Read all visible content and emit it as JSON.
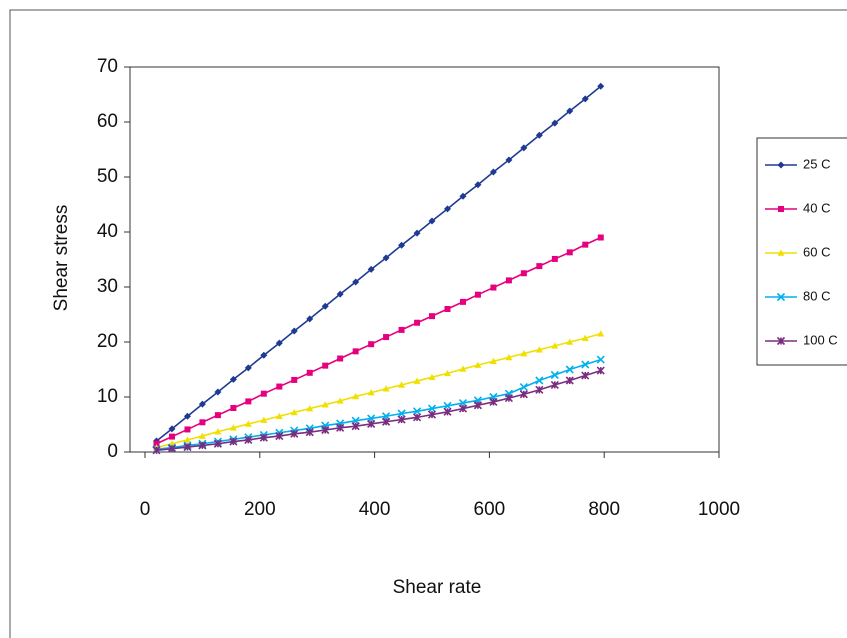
{
  "chart_data": {
    "type": "line",
    "xlabel": "Shear rate",
    "ylabel": "Shear stress",
    "x": [
      20,
      47,
      74,
      100,
      127,
      154,
      180,
      207,
      234,
      260,
      287,
      314,
      340,
      367,
      394,
      420,
      447,
      474,
      500,
      527,
      554,
      580,
      607,
      634,
      660,
      687,
      714,
      740,
      767,
      794
    ],
    "series": [
      {
        "name": "25 C",
        "color": "#1f3a93",
        "marker": "diamond",
        "values": [
          2.0,
          4.2,
          6.5,
          8.7,
          10.9,
          13.2,
          15.3,
          17.6,
          19.8,
          22.0,
          24.2,
          26.5,
          28.7,
          30.9,
          33.2,
          35.3,
          37.6,
          39.8,
          42.0,
          44.2,
          46.5,
          48.6,
          50.9,
          53.1,
          55.3,
          57.6,
          59.8,
          62.0,
          64.2,
          66.5
        ]
      },
      {
        "name": "40 C",
        "color": "#e6007e",
        "marker": "square",
        "values": [
          1.5,
          2.8,
          4.1,
          5.4,
          6.7,
          8.0,
          9.2,
          10.6,
          11.9,
          13.1,
          14.4,
          15.7,
          17.0,
          18.3,
          19.6,
          20.9,
          22.2,
          23.5,
          24.7,
          26.0,
          27.3,
          28.6,
          29.9,
          31.2,
          32.5,
          33.8,
          35.1,
          36.3,
          37.7,
          39.0
        ]
      },
      {
        "name": "60 C",
        "color": "#f0e000",
        "marker": "triangle",
        "values": [
          0.8,
          1.5,
          2.2,
          2.9,
          3.7,
          4.4,
          5.1,
          5.8,
          6.5,
          7.2,
          7.9,
          8.6,
          9.3,
          10.1,
          10.8,
          11.5,
          12.2,
          12.9,
          13.6,
          14.3,
          15.1,
          15.8,
          16.5,
          17.2,
          17.9,
          18.6,
          19.3,
          20.0,
          20.7,
          21.5
        ]
      },
      {
        "name": "80 C",
        "color": "#00b0f0",
        "marker": "x",
        "values": [
          0.5,
          0.8,
          1.2,
          1.5,
          1.9,
          2.3,
          2.7,
          3.1,
          3.5,
          3.9,
          4.3,
          4.8,
          5.2,
          5.7,
          6.1,
          6.5,
          7.0,
          7.4,
          7.9,
          8.4,
          8.9,
          9.4,
          10.0,
          10.6,
          11.8,
          13.0,
          14.0,
          15.0,
          15.9,
          16.8
        ]
      },
      {
        "name": "100 C",
        "color": "#7b2c7e",
        "marker": "star",
        "values": [
          0.3,
          0.6,
          0.9,
          1.2,
          1.5,
          1.9,
          2.2,
          2.6,
          2.9,
          3.3,
          3.6,
          4.0,
          4.4,
          4.7,
          5.1,
          5.5,
          5.9,
          6.3,
          6.8,
          7.3,
          7.9,
          8.5,
          9.1,
          9.8,
          10.5,
          11.3,
          12.2,
          13.0,
          13.9,
          14.8
        ]
      }
    ],
    "xlim": [
      0,
      1000
    ],
    "xticks": [
      0,
      200,
      400,
      600,
      800,
      1000
    ],
    "ylim": [
      0,
      70
    ],
    "yticks": [
      0,
      10,
      20,
      30,
      40,
      50,
      60,
      70
    ],
    "grid": false,
    "legend": "right"
  }
}
